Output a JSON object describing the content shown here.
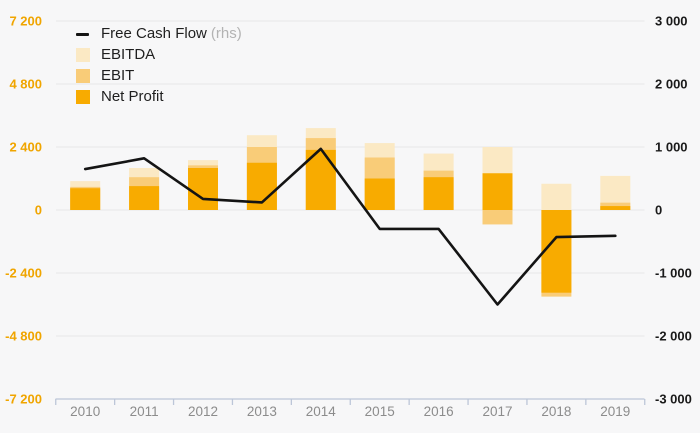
{
  "chart_data": {
    "type": "combo-bar-line",
    "categories": [
      "2010",
      "2011",
      "2012",
      "2013",
      "2014",
      "2015",
      "2016",
      "2017",
      "2018",
      "2019"
    ],
    "series": [
      {
        "name": "EBITDA",
        "kind": "bar",
        "axis": "left",
        "color": "#fbe9c4",
        "values": [
          1100,
          1600,
          1900,
          2850,
          3120,
          2550,
          2150,
          2400,
          1000,
          1300
        ]
      },
      {
        "name": "EBIT",
        "kind": "bar",
        "axis": "left",
        "color": "#f9cc78",
        "values": [
          880,
          1250,
          1700,
          2400,
          2740,
          2000,
          1500,
          -550,
          -3300,
          280
        ]
      },
      {
        "name": "Net Profit",
        "kind": "bar",
        "axis": "left",
        "color": "#f8ab00",
        "values": [
          830,
          910,
          1600,
          1800,
          2290,
          1200,
          1250,
          1400,
          -3150,
          150
        ]
      },
      {
        "name": "Free Cash Flow",
        "kind": "line",
        "axis": "right",
        "color": "#141414",
        "values": [
          650,
          820,
          175,
          120,
          970,
          -300,
          -300,
          -1500,
          -430,
          -410
        ]
      }
    ],
    "left_axis": {
      "ticks": [
        "7 200",
        "4 800",
        "2 400",
        "0",
        "-2 400",
        "-4 800",
        "-7 200"
      ],
      "values": [
        7200,
        4800,
        2400,
        0,
        -2400,
        -4800,
        -7200
      ],
      "min": -7200,
      "max": 7200,
      "label_color": "#f0a500"
    },
    "right_axis": {
      "ticks": [
        "3 000",
        "2 000",
        "1 000",
        "0",
        "-1 000",
        "-2 000",
        "-3 000"
      ],
      "values": [
        3000,
        2000,
        1000,
        0,
        -1000,
        -2000,
        -3000
      ],
      "min": -3000,
      "max": 3000,
      "label_color": "#1a1a1a"
    },
    "grid": true,
    "legend_position": "top-left",
    "legend": [
      {
        "label": "Free Cash Flow",
        "suffix": "(rhs)",
        "swatch": "line",
        "color": "#141414"
      },
      {
        "label": "EBITDA",
        "suffix": "",
        "swatch": "square",
        "color": "#fbe9c4"
      },
      {
        "label": "EBIT",
        "suffix": "",
        "swatch": "square",
        "color": "#f9cc78"
      },
      {
        "label": "Net Profit",
        "suffix": "",
        "swatch": "square",
        "color": "#f8ab00"
      }
    ]
  },
  "style_colors": {
    "background": "#f7f7f8",
    "gridline": "#e7e7e7",
    "axis_line": "#bcc6d8",
    "year_label": "#8c8c8c"
  }
}
